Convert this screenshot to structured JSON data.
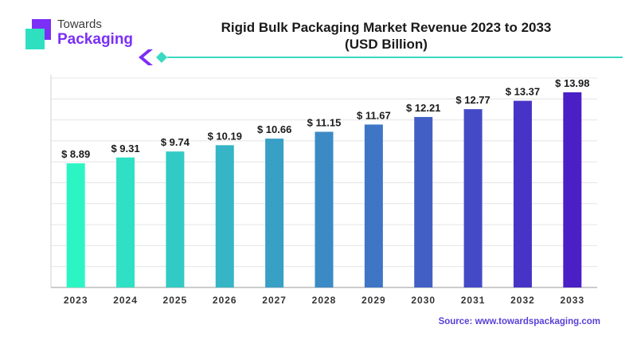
{
  "logo": {
    "line1": "Towards",
    "line2": "Packaging",
    "icon": "packaging-logo-icon"
  },
  "header": {
    "title_line1": "Rigid Bulk Packaging Market Revenue 2023 to 2033",
    "title_line2": "(USD Billion)"
  },
  "source": "Source: www.towardspackaging.com",
  "colors": {
    "accent_line": "#3ad9c1",
    "bar_start": "#2cf5c4",
    "bar_end": "#4a1fc6"
  },
  "chart_data": {
    "type": "bar",
    "title": "Rigid Bulk Packaging Market Revenue 2023 to 2033",
    "subtitle": "(USD Billion)",
    "categories": [
      "2023",
      "2024",
      "2025",
      "2026",
      "2027",
      "2028",
      "2029",
      "2030",
      "2031",
      "2032",
      "2033"
    ],
    "values": [
      8.89,
      9.31,
      9.74,
      10.19,
      10.66,
      11.15,
      11.67,
      12.21,
      12.77,
      13.37,
      13.98
    ],
    "value_labels": [
      "$ 8.89",
      "$ 9.31",
      "$ 9.74",
      "$ 10.19",
      "$ 10.66",
      "$ 11.15",
      "$ 11.67",
      "$ 12.21",
      "$ 12.77",
      "$ 13.37",
      "$ 13.98"
    ],
    "ylim": [
      0,
      15
    ],
    "grid": true,
    "legend": "none"
  }
}
